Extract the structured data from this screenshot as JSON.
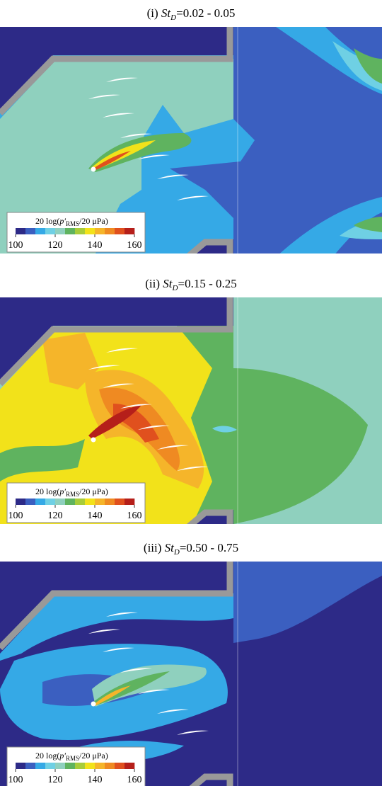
{
  "panels": [
    {
      "title": {
        "prefix": "(i) ",
        "var": "St",
        "sub": "D",
        "range": "=0.02 - 0.05"
      }
    },
    {
      "title": {
        "prefix": "(ii) ",
        "var": "St",
        "sub": "D",
        "range": "=0.15 - 0.25"
      }
    },
    {
      "title": {
        "prefix": "(iii) ",
        "var": "St",
        "sub": "D",
        "range": "=0.50 - 0.75"
      }
    }
  ],
  "colorbar": {
    "label": {
      "prefix": "20 log(",
      "var": "p′",
      "sub": "RMS",
      "suffix": "/20 μPa)"
    },
    "ticks": [
      100,
      120,
      140,
      160
    ],
    "colors": [
      "#2d2a87",
      "#3b5fc0",
      "#35a9e6",
      "#6fd0e4",
      "#8fd0be",
      "#5fb35f",
      "#a8cc3a",
      "#f2e21a",
      "#f5b52a",
      "#ef8a22",
      "#e0501e",
      "#b51f1a"
    ]
  }
}
